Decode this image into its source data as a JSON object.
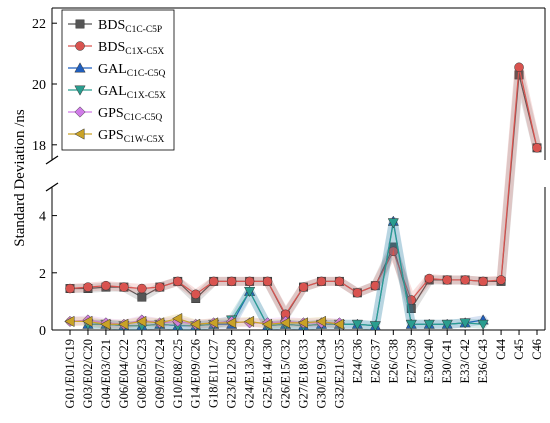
{
  "chart_data": {
    "type": "line",
    "title": "",
    "xlabel": "",
    "ylabel": "Standard Deviation /ns",
    "y_axis_break": {
      "lower_range": [
        0,
        5
      ],
      "upper_range": [
        17.5,
        22.5
      ]
    },
    "y_ticks": [
      0,
      2,
      4,
      18,
      20,
      22
    ],
    "legend_position": "top-left",
    "grid": false,
    "categories": [
      "G01/E01/C19",
      "G03/E02/C20",
      "G04/E03/C21",
      "G06/E04/C22",
      "G08/E05/C23",
      "G09/E07/C24",
      "G10/E08/C25",
      "G14/E09/C26",
      "G18/E11/C27",
      "G23/E12/C28",
      "G24/E13/C29",
      "G25/E14/C30",
      "G26/E15/C32",
      "G27/E18/C33",
      "G30/E19/C34",
      "G32/E21/C35",
      "E24/C36",
      "E26/C37",
      "E26/C38",
      "E27/C39",
      "E30/C40",
      "E30/C41",
      "E33/C42",
      "E36/C43",
      "C44",
      "C45",
      "C46"
    ],
    "series": [
      {
        "name_main": "BDS",
        "name_sub": "C1C-C5P",
        "color": "#555555",
        "marker": "square",
        "values": [
          1.45,
          1.45,
          1.5,
          1.5,
          1.15,
          1.5,
          1.7,
          1.1,
          1.7,
          1.7,
          1.7,
          1.7,
          0.5,
          1.5,
          1.7,
          1.7,
          1.3,
          1.55,
          2.9,
          0.75,
          1.75,
          1.75,
          1.75,
          1.7,
          1.7,
          20.3,
          17.9
        ]
      },
      {
        "name_main": "BDS",
        "name_sub": "C1X-C5X",
        "color": "#d9534f",
        "marker": "circle",
        "values": [
          1.45,
          1.5,
          1.55,
          1.5,
          1.45,
          1.5,
          1.7,
          1.25,
          1.7,
          1.7,
          1.7,
          1.7,
          0.55,
          1.5,
          1.7,
          1.7,
          1.3,
          1.55,
          2.75,
          1.05,
          1.8,
          1.75,
          1.75,
          1.7,
          1.75,
          20.55,
          17.9
        ]
      },
      {
        "name_main": "GAL",
        "name_sub": "C1C-C5Q",
        "color": "#1f5fbf",
        "marker": "triangle-up",
        "values": [
          null,
          0.2,
          0.2,
          0.15,
          0.15,
          0.2,
          0.15,
          0.15,
          0.2,
          0.2,
          1.35,
          0.15,
          0.2,
          0.15,
          0.2,
          0.2,
          0.2,
          0.15,
          3.8,
          0.2,
          0.2,
          0.2,
          0.25,
          0.35,
          null,
          null,
          null
        ]
      },
      {
        "name_main": "GAL",
        "name_sub": "C1X-C5X",
        "color": "#2a9d8f",
        "marker": "triangle-down",
        "values": [
          null,
          0.2,
          0.2,
          0.15,
          0.15,
          0.2,
          0.15,
          0.15,
          0.2,
          0.35,
          1.35,
          0.15,
          0.2,
          0.15,
          0.2,
          0.2,
          0.2,
          0.15,
          3.75,
          0.2,
          0.2,
          0.2,
          0.25,
          0.2,
          null,
          null,
          null
        ]
      },
      {
        "name_main": "GPS",
        "name_sub": "C1C-C5Q",
        "color": "#d07be8",
        "marker": "diamond",
        "values": [
          0.3,
          0.35,
          0.25,
          0.2,
          0.35,
          0.25,
          0.3,
          0.2,
          0.25,
          0.3,
          0.25,
          0.25,
          0.3,
          0.25,
          0.25,
          0.25,
          null,
          null,
          null,
          null,
          null,
          null,
          null,
          null,
          null,
          null,
          null
        ]
      },
      {
        "name_main": "GPS",
        "name_sub": "C1W-C5X",
        "color": "#c9a227",
        "marker": "triangle-left",
        "values": [
          0.3,
          0.3,
          0.2,
          0.2,
          0.3,
          0.25,
          0.4,
          0.2,
          0.25,
          0.25,
          0.3,
          0.2,
          0.25,
          0.25,
          0.3,
          0.2,
          null,
          null,
          null,
          null,
          null,
          null,
          null,
          null,
          null,
          null,
          null
        ]
      }
    ]
  }
}
